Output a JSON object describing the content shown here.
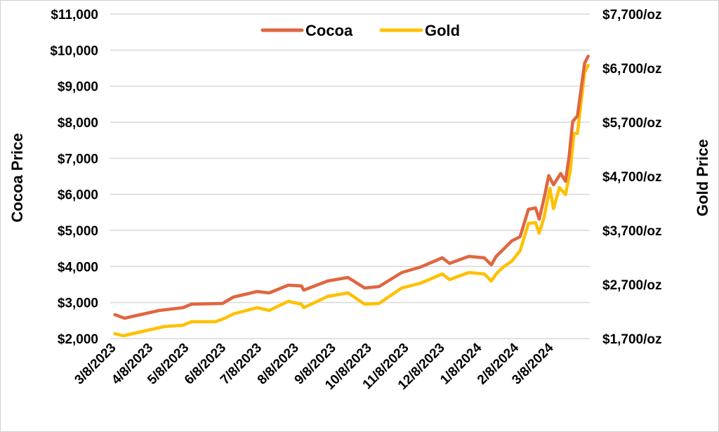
{
  "chart_data": {
    "type": "line",
    "title": "",
    "xlabel": "",
    "ylabel": "Cocoa Price",
    "y2label": "Gold Price",
    "x_unit": "days since 3/8/2023",
    "xlim": [
      0,
      400
    ],
    "ylim": [
      2000,
      11000
    ],
    "y2lim": [
      1700,
      7700
    ],
    "grid": true,
    "legend_position": "top-center",
    "x_ticks": [
      {
        "day": 0,
        "label": "3/8/2023"
      },
      {
        "day": 31,
        "label": "4/8/2023"
      },
      {
        "day": 61,
        "label": "5/8/2023"
      },
      {
        "day": 92,
        "label": "6/8/2023"
      },
      {
        "day": 122,
        "label": "7/8/2023"
      },
      {
        "day": 153,
        "label": "8/8/2023"
      },
      {
        "day": 184,
        "label": "9/8/2023"
      },
      {
        "day": 214,
        "label": "10/8/2023"
      },
      {
        "day": 245,
        "label": "11/8/2023"
      },
      {
        "day": 275,
        "label": "12/8/2023"
      },
      {
        "day": 306,
        "label": "1/8/2024"
      },
      {
        "day": 337,
        "label": "2/8/2024"
      },
      {
        "day": 366,
        "label": "3/8/2024"
      }
    ],
    "y_ticks": [
      {
        "value": 2000,
        "label": "$2,000"
      },
      {
        "value": 3000,
        "label": "$3,000"
      },
      {
        "value": 4000,
        "label": "$4,000"
      },
      {
        "value": 5000,
        "label": "$5,000"
      },
      {
        "value": 6000,
        "label": "$6,000"
      },
      {
        "value": 7000,
        "label": "$7,000"
      },
      {
        "value": 8000,
        "label": "$8,000"
      },
      {
        "value": 9000,
        "label": "$9,000"
      },
      {
        "value": 10000,
        "label": "$10,000"
      },
      {
        "value": 11000,
        "label": "$11,000"
      }
    ],
    "y2_ticks": [
      {
        "value": 1700,
        "label": "$1,700/oz"
      },
      {
        "value": 2700,
        "label": "$2,700/oz"
      },
      {
        "value": 3700,
        "label": "$3,700/oz"
      },
      {
        "value": 4700,
        "label": "$4,700/oz"
      },
      {
        "value": 5700,
        "label": "$5,700/oz"
      },
      {
        "value": 6700,
        "label": "$6,700/oz"
      },
      {
        "value": 7700,
        "label": "$7,700/oz"
      }
    ],
    "series": [
      {
        "name": "Cocoa",
        "axis": "left",
        "color": "#E0663F",
        "points": [
          [
            1,
            2662
          ],
          [
            9,
            2565
          ],
          [
            38,
            2779
          ],
          [
            58,
            2857
          ],
          [
            65,
            2955
          ],
          [
            91,
            2974
          ],
          [
            100,
            3149
          ],
          [
            120,
            3305
          ],
          [
            130,
            3266
          ],
          [
            146,
            3481
          ],
          [
            157,
            3461
          ],
          [
            159,
            3344
          ],
          [
            179,
            3597
          ],
          [
            196,
            3695
          ],
          [
            210,
            3403
          ],
          [
            222,
            3442
          ],
          [
            241,
            3831
          ],
          [
            257,
            3987
          ],
          [
            275,
            4240
          ],
          [
            281,
            4084
          ],
          [
            297,
            4279
          ],
          [
            310,
            4240
          ],
          [
            316,
            4045
          ],
          [
            320,
            4279
          ],
          [
            326,
            4474
          ],
          [
            333,
            4708
          ],
          [
            340,
            4825
          ],
          [
            347,
            5584
          ],
          [
            353,
            5623
          ],
          [
            356,
            5312
          ],
          [
            360,
            5877
          ],
          [
            364,
            6520
          ],
          [
            368,
            6266
          ],
          [
            374,
            6578
          ],
          [
            378,
            6364
          ],
          [
            381,
            7045
          ],
          [
            384,
            8019
          ],
          [
            388,
            8175
          ],
          [
            394,
            9636
          ],
          [
            397,
            9831
          ]
        ]
      },
      {
        "name": "Gold",
        "axis": "right",
        "color": "#FFC000",
        "points": [
          [
            1,
            1791
          ],
          [
            8,
            1752
          ],
          [
            42,
            1921
          ],
          [
            58,
            1947
          ],
          [
            65,
            2012
          ],
          [
            85,
            2012
          ],
          [
            93,
            2077
          ],
          [
            100,
            2155
          ],
          [
            120,
            2271
          ],
          [
            130,
            2219
          ],
          [
            146,
            2388
          ],
          [
            157,
            2336
          ],
          [
            159,
            2271
          ],
          [
            179,
            2479
          ],
          [
            196,
            2544
          ],
          [
            210,
            2336
          ],
          [
            222,
            2349
          ],
          [
            241,
            2635
          ],
          [
            257,
            2726
          ],
          [
            275,
            2895
          ],
          [
            281,
            2791
          ],
          [
            297,
            2921
          ],
          [
            310,
            2895
          ],
          [
            316,
            2765
          ],
          [
            320,
            2895
          ],
          [
            326,
            3025
          ],
          [
            333,
            3129
          ],
          [
            340,
            3323
          ],
          [
            347,
            3830
          ],
          [
            353,
            3843
          ],
          [
            356,
            3648
          ],
          [
            360,
            3934
          ],
          [
            365,
            4479
          ],
          [
            368,
            4103
          ],
          [
            373,
            4492
          ],
          [
            378,
            4362
          ],
          [
            382,
            4804
          ],
          [
            385,
            5492
          ],
          [
            388,
            5492
          ],
          [
            394,
            6622
          ],
          [
            397,
            6752
          ]
        ]
      }
    ]
  }
}
